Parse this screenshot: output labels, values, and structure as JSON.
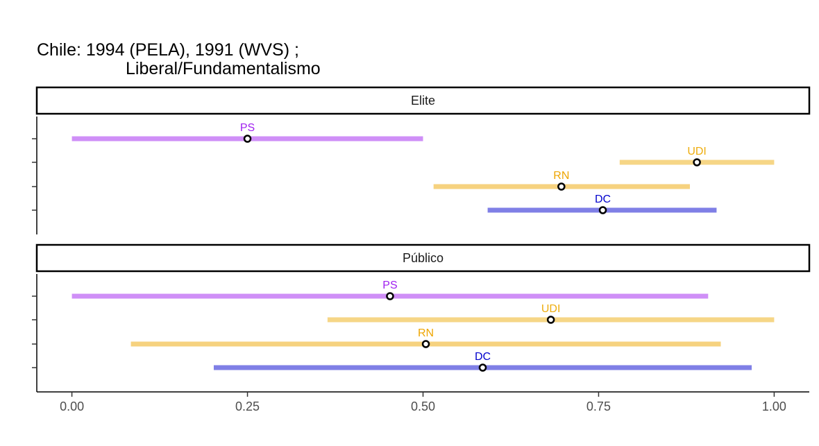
{
  "chart_data": {
    "type": "interval",
    "title_line1": "Chile: 1994 (PELA), 1991 (WVS) ;",
    "title_line2": "Liberal/Fundamentalismo",
    "xlim": [
      -0.05,
      1.05
    ],
    "x_ticks": [
      0,
      0.25,
      0.5,
      0.75,
      1.0
    ],
    "x_tick_labels": [
      "0.00",
      "0.25",
      "0.50",
      "0.75",
      "1.00"
    ],
    "grid": false,
    "panels": [
      {
        "name": "Elite",
        "rows": [
          {
            "party": "PS",
            "low": 0.0,
            "high": 0.5,
            "point": 0.25,
            "color": "#A020F0"
          },
          {
            "party": "UDI",
            "low": 0.78,
            "high": 1.0,
            "point": 0.89,
            "color": "#EEAD0E"
          },
          {
            "party": "RN",
            "low": 0.515,
            "high": 0.88,
            "point": 0.697,
            "color": "#EEA500"
          },
          {
            "party": "DC",
            "low": 0.592,
            "high": 0.918,
            "point": 0.756,
            "color": "#0000CD"
          }
        ]
      },
      {
        "name": "Público",
        "rows": [
          {
            "party": "PS",
            "low": 0.0,
            "high": 0.906,
            "point": 0.453,
            "color": "#A020F0"
          },
          {
            "party": "UDI",
            "low": 0.364,
            "high": 1.0,
            "point": 0.682,
            "color": "#EEAD0E"
          },
          {
            "party": "RN",
            "low": 0.084,
            "high": 0.924,
            "point": 0.504,
            "color": "#EEA500"
          },
          {
            "party": "DC",
            "low": 0.202,
            "high": 0.968,
            "point": 0.585,
            "color": "#0000CD"
          }
        ]
      }
    ]
  }
}
